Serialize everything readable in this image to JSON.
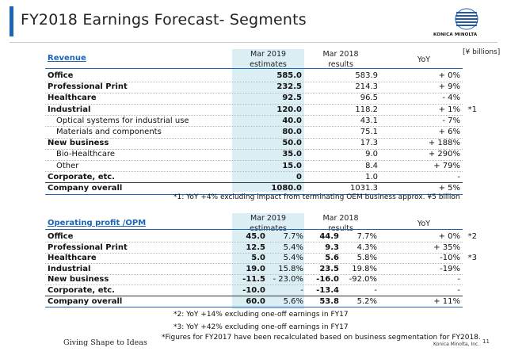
{
  "title": "FY2018 Earnings Forecast- Segments",
  "brand": "KONICA MINOLTA",
  "unit": "[¥ billions]",
  "revenue": {
    "title": "Revenue",
    "headers": {
      "col1_line1": "Mar 2019",
      "col1_line2": "estimates",
      "col2_line1": "Mar 2018",
      "col2_line2": "results",
      "col3": "YoY"
    },
    "rows": [
      {
        "label": "Office",
        "bold": true,
        "est": "585.0",
        "res": "583.9",
        "yoy": "+ 0%"
      },
      {
        "label": "Professional Print",
        "bold": true,
        "est": "232.5",
        "res": "214.3",
        "yoy": "+ 9%"
      },
      {
        "label": "Healthcare",
        "bold": true,
        "est": "92.5",
        "res": "96.5",
        "yoy": "- 4%"
      },
      {
        "label": "Industrial",
        "bold": true,
        "est": "120.0",
        "res": "118.2",
        "yoy": "+ 1%",
        "fn": "*1"
      },
      {
        "label": "Optical systems for industrial use",
        "bold": false,
        "indent": true,
        "est": "40.0",
        "res": "43.1",
        "yoy": "- 7%"
      },
      {
        "label": "Materials and components",
        "bold": false,
        "indent": true,
        "est": "80.0",
        "res": "75.1",
        "yoy": "+ 6%"
      },
      {
        "label": "New business",
        "bold": true,
        "est": "50.0",
        "res": "17.3",
        "yoy": "+ 188%"
      },
      {
        "label": "Bio-Healthcare",
        "bold": false,
        "indent": true,
        "est": "35.0",
        "res": "9.0",
        "yoy": "+ 290%"
      },
      {
        "label": "Other",
        "bold": false,
        "indent": true,
        "est": "15.0",
        "res": "8.4",
        "yoy": "+ 79%"
      },
      {
        "label": "Corporate, etc.",
        "bold": true,
        "est": "0",
        "res": "1.0",
        "yoy": "-"
      },
      {
        "label": "Company overall",
        "bold": true,
        "est": "1080.0",
        "res": "1031.3",
        "yoy": "+ 5%"
      }
    ],
    "note": "*1: YoY +4% excluding impact from terminating OEM business approx. ¥5 billion"
  },
  "op": {
    "title": "Operating profit /OPM",
    "headers": {
      "col1_line1": "Mar 2019",
      "col1_line2": "estimates",
      "col2_line1": "Mar 2018",
      "col2_line2": "results",
      "col3": "YoY"
    },
    "rows": [
      {
        "label": "Office",
        "est": "45.0",
        "est_opm": "7.7%",
        "res": "44.9",
        "res_opm": "7.7%",
        "yoy": "+ 0%",
        "fn": "*2"
      },
      {
        "label": "Professional Print",
        "est": "12.5",
        "est_opm": "5.4%",
        "res": "9.3",
        "res_opm": "4.3%",
        "yoy": "+ 35%"
      },
      {
        "label": "Healthcare",
        "est": "5.0",
        "est_opm": "5.4%",
        "res": "5.6",
        "res_opm": "5.8%",
        "yoy": "-10%",
        "fn": "*3"
      },
      {
        "label": "Industrial",
        "est": "19.0",
        "est_opm": "15.8%",
        "res": "23.5",
        "res_opm": "19.8%",
        "yoy": "-19%"
      },
      {
        "label": "New business",
        "est": "-11.5",
        "est_opm": "- 23.0%",
        "res": "-16.0",
        "res_opm": "-92.0%",
        "yoy": "-"
      },
      {
        "label": "Corporate, etc.",
        "est": "-10.0",
        "est_opm": "-",
        "res": "-13.4",
        "res_opm": "-",
        "yoy": "-"
      },
      {
        "label": "Company overall",
        "est": "60.0",
        "est_opm": "5.6%",
        "res": "53.8",
        "res_opm": "5.2%",
        "yoy": "+ 11%"
      }
    ],
    "notes": [
      "*2: YoY +14% excluding one-off earnings in FY17",
      "*3: YoY +42% excluding one-off earnings in FY17",
      "*Figures for FY2017 have been recalculated based on business segmentation for FY2018."
    ]
  },
  "footer": {
    "tagline": "Giving Shape to Ideas",
    "company": "Konica Minolta, Inc.",
    "page": "11"
  },
  "colors": {
    "accent": "#1c64b4",
    "shade": "#dbeef3",
    "logo": "#1e5aa8"
  }
}
